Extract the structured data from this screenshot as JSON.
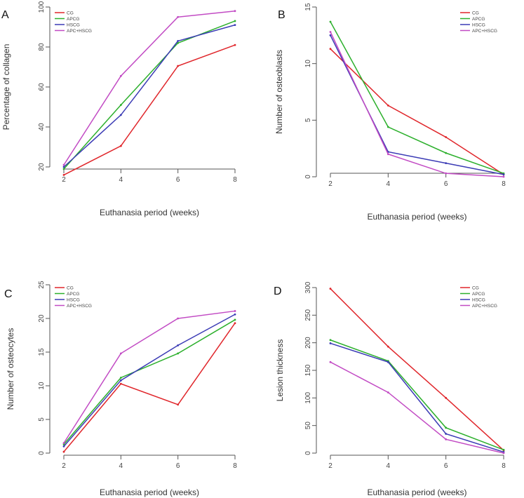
{
  "chart_data": [
    {
      "panel_label": "A",
      "type": "line",
      "ylabel": "Percentage of collagen",
      "xlabel": "Euthanasia period (weeks)",
      "x": [
        2,
        4,
        6,
        8
      ],
      "xticks": [
        "2",
        "4",
        "6",
        "8"
      ],
      "yticks": [
        "20",
        "40",
        "60",
        "80",
        "100"
      ],
      "xlim": [
        2,
        8
      ],
      "ylim": [
        20,
        100
      ],
      "legend": "top-left",
      "grid": false,
      "series": [
        {
          "name": "CG",
          "color": "#e0262b",
          "values": [
            16,
            30.5,
            70.5,
            81
          ]
        },
        {
          "name": "APCG",
          "color": "#2db02d",
          "values": [
            19,
            51,
            82,
            93
          ]
        },
        {
          "name": "HSCG",
          "color": "#3b3bb5",
          "values": [
            20,
            46,
            83,
            91
          ]
        },
        {
          "name": "APC+HSCG",
          "color": "#c24bc4",
          "values": [
            21,
            65.5,
            95,
            98
          ]
        }
      ]
    },
    {
      "panel_label": "B",
      "type": "line",
      "ylabel": "Number of osteoblasts",
      "xlabel": "Euthanasia period (weeks)",
      "x": [
        2,
        4,
        6,
        8
      ],
      "xticks": [
        "2",
        "4",
        "6",
        "8"
      ],
      "yticks": [
        "0",
        "5",
        "10",
        "15"
      ],
      "xlim": [
        2,
        8
      ],
      "ylim": [
        0,
        15
      ],
      "legend": "top-right",
      "grid": false,
      "series": [
        {
          "name": "CG",
          "color": "#e0262b",
          "values": [
            11.3,
            6.3,
            3.5,
            0.2
          ]
        },
        {
          "name": "APCG",
          "color": "#2db02d",
          "values": [
            13.7,
            4.4,
            2.1,
            0.3
          ]
        },
        {
          "name": "HSCG",
          "color": "#3b3bb5",
          "values": [
            12.5,
            2.2,
            1.2,
            0.2
          ]
        },
        {
          "name": "APC+HSCG",
          "color": "#c24bc4",
          "values": [
            12.8,
            2.0,
            0.3,
            0.0
          ]
        }
      ]
    },
    {
      "panel_label": "C",
      "type": "line",
      "ylabel": "Number of osteocytes",
      "xlabel": "Euthanasia period (weeks)",
      "x": [
        2,
        4,
        6,
        8
      ],
      "xticks": [
        "2",
        "4",
        "6",
        "8"
      ],
      "yticks": [
        "0",
        "5",
        "10",
        "15",
        "20",
        "25"
      ],
      "xlim": [
        2,
        8
      ],
      "ylim": [
        0,
        25
      ],
      "legend": "top-left",
      "grid": false,
      "series": [
        {
          "name": "CG",
          "color": "#e0262b",
          "values": [
            0.2,
            10.3,
            7.2,
            19.3
          ]
        },
        {
          "name": "APCG",
          "color": "#2db02d",
          "values": [
            1.3,
            11.2,
            14.8,
            19.8
          ]
        },
        {
          "name": "HSCG",
          "color": "#3b3bb5",
          "values": [
            1.0,
            10.8,
            16.0,
            20.6
          ]
        },
        {
          "name": "APC+HSCG",
          "color": "#c24bc4",
          "values": [
            1.5,
            14.8,
            20.0,
            21.1
          ]
        }
      ]
    },
    {
      "panel_label": "D",
      "type": "line",
      "ylabel": "Lesion thickness",
      "xlabel": "Euthanasia period (weeks)",
      "x": [
        2,
        4,
        6,
        8
      ],
      "xticks": [
        "2",
        "4",
        "6",
        "8"
      ],
      "yticks": [
        "0",
        "50",
        "100",
        "150",
        "200",
        "250",
        "300"
      ],
      "xlim": [
        2,
        8
      ],
      "ylim": [
        0,
        300
      ],
      "legend": "top-right",
      "grid": false,
      "series": [
        {
          "name": "CG",
          "color": "#e0262b",
          "values": [
            298,
            193,
            100,
            5
          ]
        },
        {
          "name": "APCG",
          "color": "#2db02d",
          "values": [
            205,
            167,
            46,
            6
          ]
        },
        {
          "name": "HSCG",
          "color": "#3b3bb5",
          "values": [
            199,
            165,
            35,
            2
          ]
        },
        {
          "name": "APC+HSCG",
          "color": "#c24bc4",
          "values": [
            165,
            110,
            25,
            0
          ]
        }
      ]
    }
  ]
}
